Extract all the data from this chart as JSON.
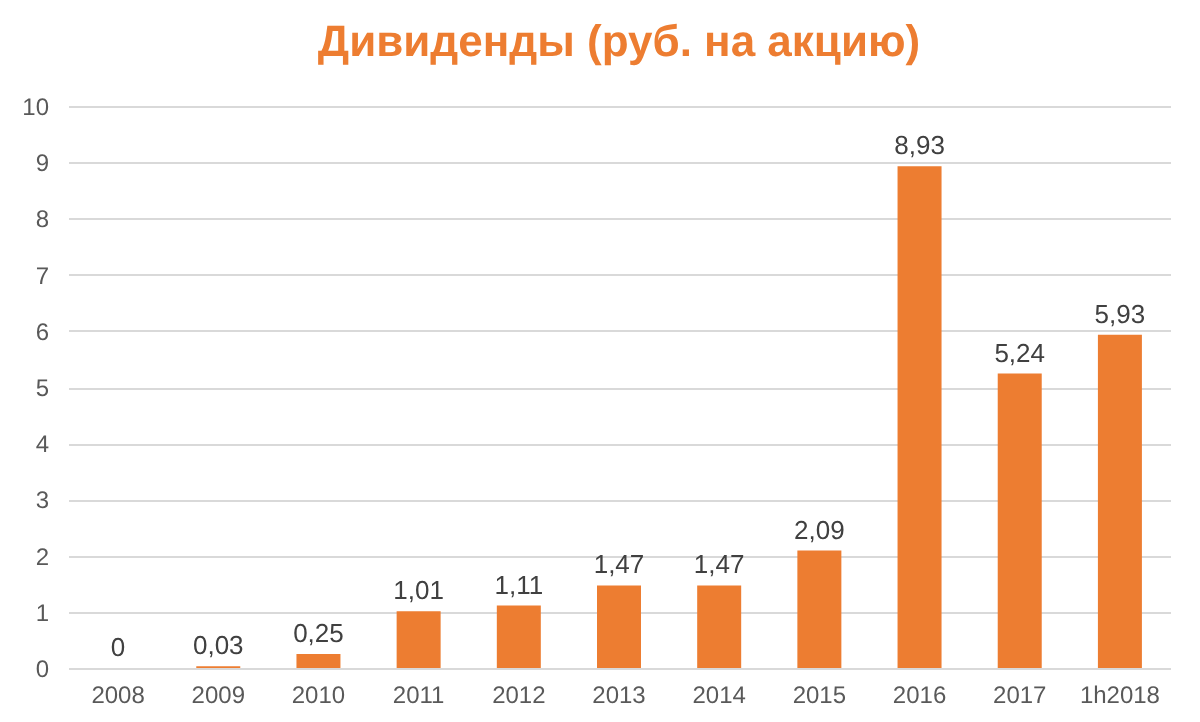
{
  "chart_data": {
    "type": "bar",
    "title": "Дивиденды (руб. на акцию)",
    "categories": [
      "2008",
      "2009",
      "2010",
      "2011",
      "2012",
      "2013",
      "2014",
      "2015",
      "2016",
      "2017",
      "1h2018"
    ],
    "values": [
      0,
      0.03,
      0.25,
      1.01,
      1.11,
      1.47,
      1.47,
      2.09,
      8.93,
      5.24,
      5.93
    ],
    "value_labels": [
      "0",
      "0,03",
      "0,25",
      "1,01",
      "1,11",
      "1,47",
      "1,47",
      "2,09",
      "8,93",
      "5,24",
      "5,93"
    ],
    "color": "#ed7d31",
    "ylim": [
      0,
      10
    ],
    "yticks": [
      0,
      1,
      2,
      3,
      4,
      5,
      6,
      7,
      8,
      9,
      10
    ],
    "grid": "y"
  }
}
